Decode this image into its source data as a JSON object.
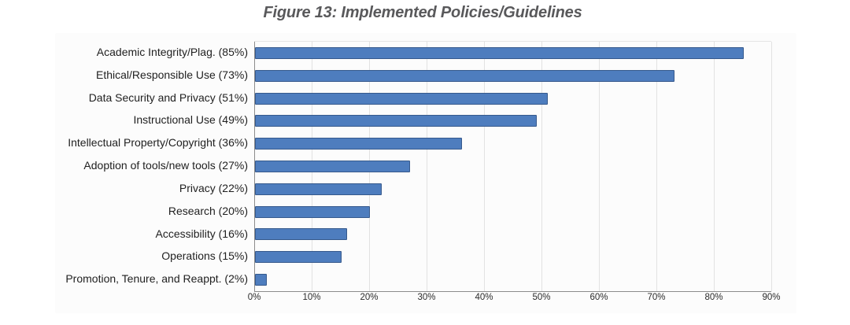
{
  "title": "Figure 13: Implemented Policies/Guidelines",
  "chart_data": {
    "type": "bar",
    "orientation": "horizontal",
    "title": "Figure 13: Implemented Policies/Guidelines",
    "categories": [
      "Academic Integrity/Plag. (85%)",
      "Ethical/Responsible Use (73%)",
      "Data Security and Privacy (51%)",
      "Instructional Use (49%)",
      "Intellectual Property/Copyright (36%)",
      "Adoption of tools/new tools (27%)",
      "Privacy (22%)",
      "Research (20%)",
      "Accessibility (16%)",
      "Operations (15%)",
      "Promotion, Tenure, and Reappt. (2%)"
    ],
    "values": [
      85,
      73,
      51,
      49,
      36,
      27,
      22,
      20,
      16,
      15,
      2
    ],
    "xlabel": "",
    "ylabel": "",
    "xlim": [
      0,
      90
    ],
    "x_tick_step": 10,
    "x_tick_labels": [
      "0%",
      "10%",
      "20%",
      "30%",
      "40%",
      "50%",
      "60%",
      "70%",
      "80%",
      "90%"
    ],
    "grid": "vertical",
    "legend": "none",
    "colors": {
      "bar_fill": "#4e7dbe",
      "bar_border": "#36598c",
      "gridline": "#e2e2e2",
      "axis": "#8c8c8c",
      "category_label": "#1f1f1f",
      "tick_label": "#2b2b2b",
      "title": "#59595b"
    }
  }
}
